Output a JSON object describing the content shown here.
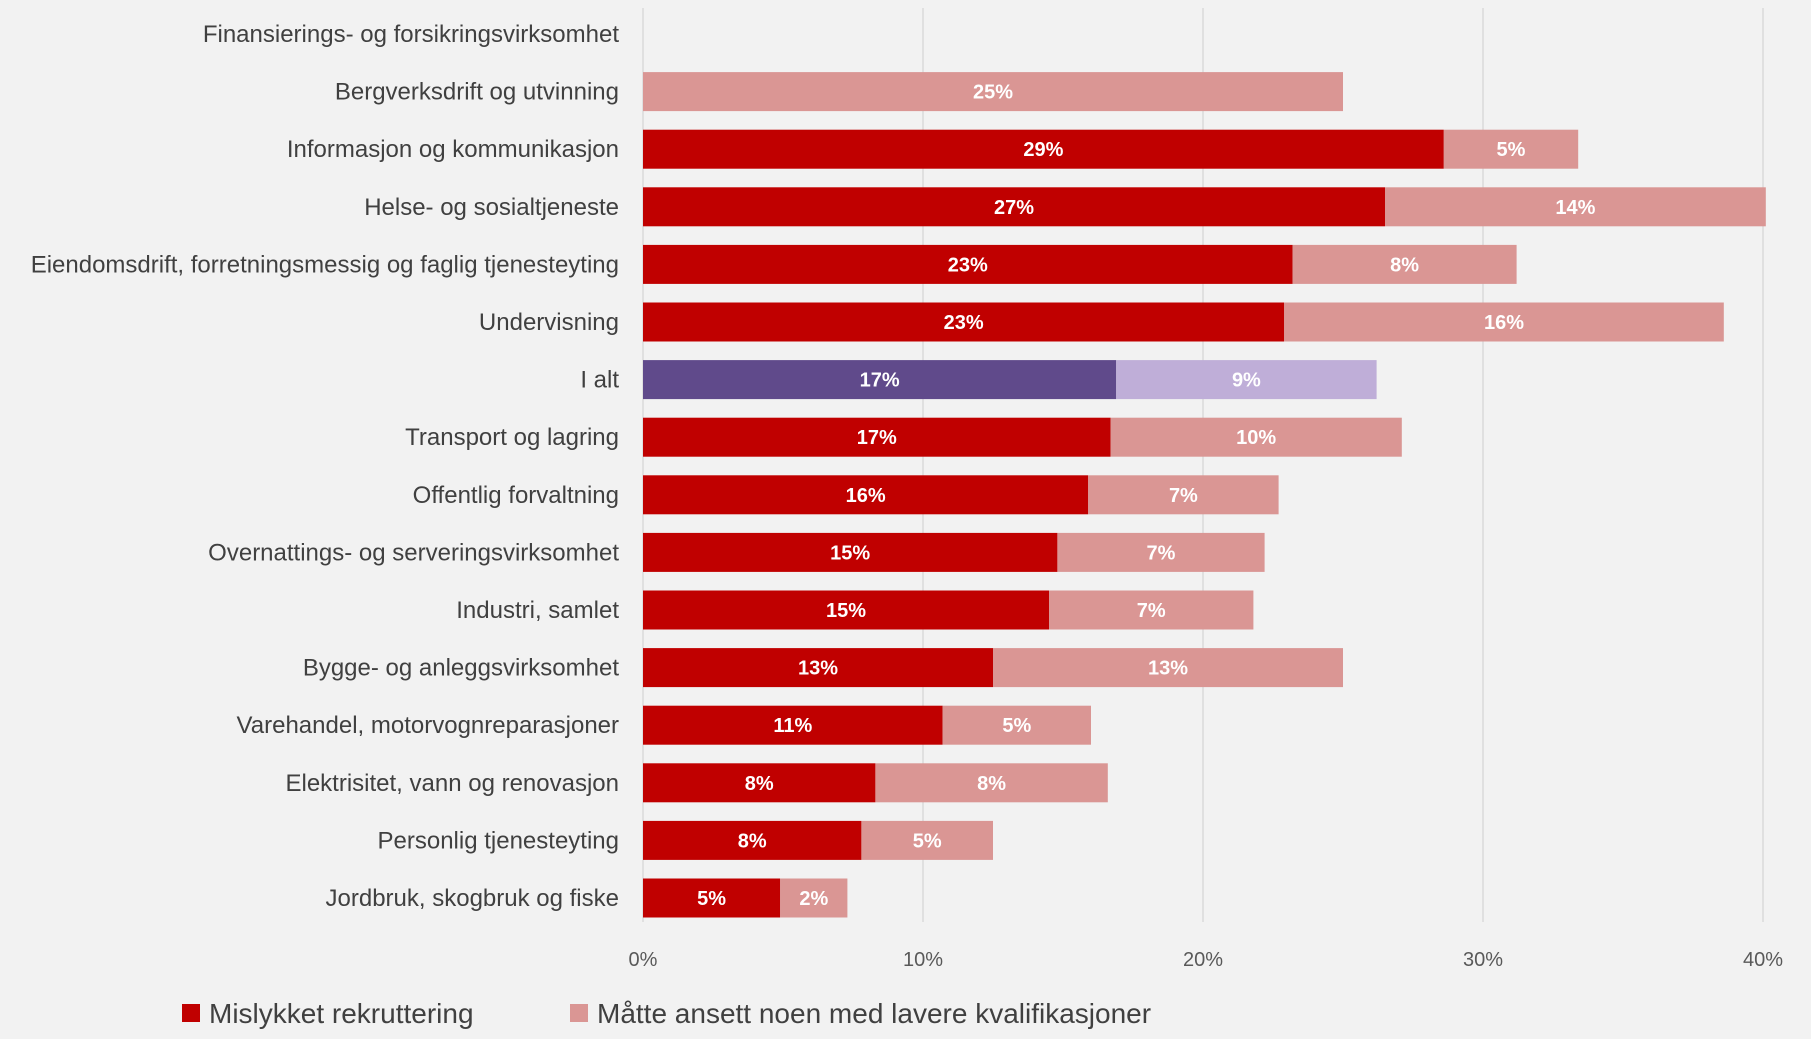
{
  "chart_data": {
    "type": "bar",
    "orientation": "horizontal",
    "stacked": true,
    "title": "",
    "xlabel": "",
    "ylabel": "",
    "xlim": [
      0,
      40
    ],
    "x_ticks": [
      "0%",
      "10%",
      "20%",
      "30%",
      "40%"
    ],
    "grid": "vertical",
    "legend_position": "bottom-left",
    "categories": [
      "Finansierings- og forsikringsvirksomhet",
      "Bergverksdrift og utvinning",
      "Informasjon og kommunikasjon",
      "Helse- og sosialtjeneste",
      "Eiendomsdrift, forretningsmessig og faglig tjenesteyting",
      "Undervisning",
      "I alt",
      "Transport og lagring",
      "Offentlig forvaltning",
      "Overnattings- og serveringsvirksomhet",
      "Industri, samlet",
      "Bygge- og anleggsvirksomhet",
      "Varehandel, motorvognreparasjoner",
      "Elektrisitet, vann og renovasjon",
      "Personlig tjenesteyting",
      "Jordbruk, skogbruk og fiske"
    ],
    "series": [
      {
        "name": "Mislykket rekruttering",
        "color": "#c00000",
        "values": [
          0,
          0,
          28.6,
          26.5,
          23.2,
          22.9,
          16.9,
          16.7,
          15.9,
          14.8,
          14.5,
          12.5,
          10.7,
          8.3,
          7.8,
          4.9
        ],
        "labels": [
          "",
          "",
          "29%",
          "27%",
          "23%",
          "23%",
          "17%",
          "17%",
          "16%",
          "15%",
          "15%",
          "13%",
          "11%",
          "8%",
          "8%",
          "5%"
        ]
      },
      {
        "name": "Måtte ansett noen med lavere kvalifikasjoner",
        "color": "#da9694",
        "values": [
          0,
          25.0,
          4.8,
          13.6,
          8.0,
          15.7,
          9.3,
          10.4,
          6.8,
          7.4,
          7.3,
          12.5,
          5.3,
          8.3,
          4.7,
          2.4
        ],
        "labels": [
          "",
          "25%",
          "5%",
          "14%",
          "8%",
          "16%",
          "9%",
          "10%",
          "7%",
          "7%",
          "7%",
          "13%",
          "5%",
          "8%",
          "5%",
          "2%"
        ]
      }
    ],
    "highlight": {
      "category": "I alt",
      "colors": [
        "#604a8b",
        "#bfaed8"
      ]
    }
  }
}
